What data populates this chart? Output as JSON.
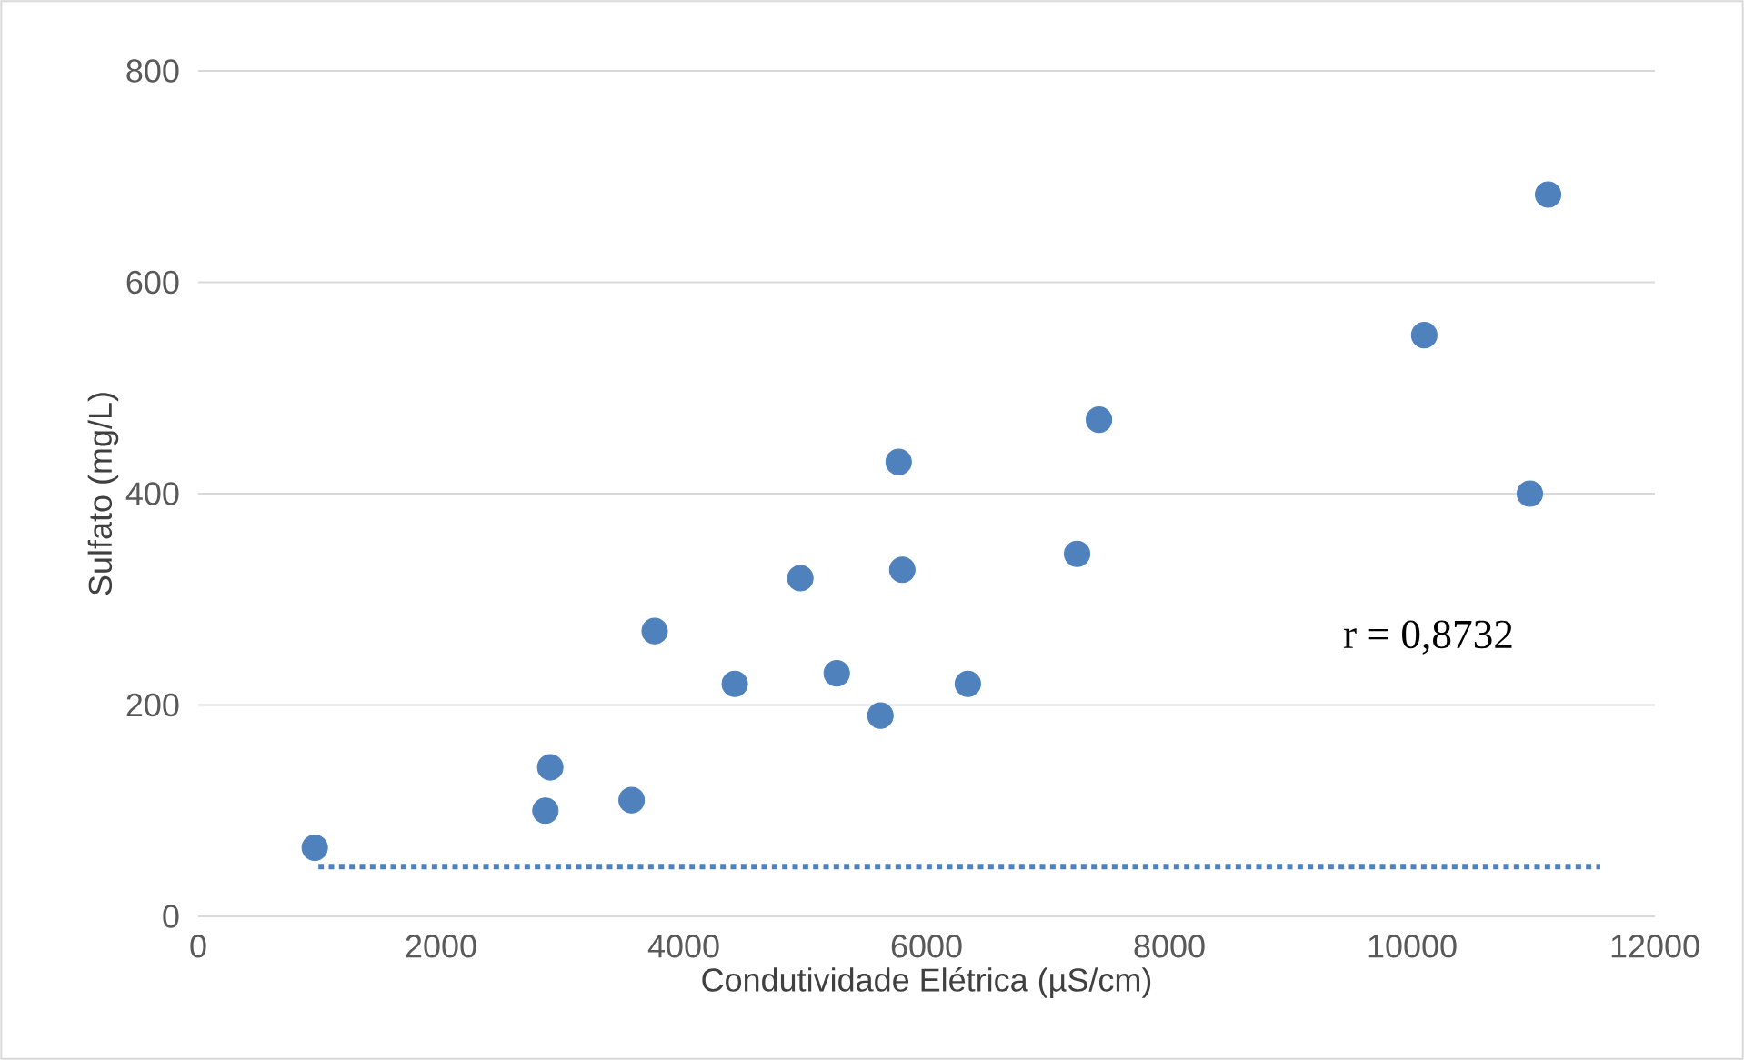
{
  "chart_data": {
    "type": "scatter",
    "xlabel": "Condutividade Elétrica (µS/cm)",
    "ylabel": "Sulfato (mg/L)",
    "xlim": [
      0,
      12000
    ],
    "ylim": [
      0,
      800
    ],
    "xticks": [
      0,
      2000,
      4000,
      6000,
      8000,
      10000,
      12000
    ],
    "yticks": [
      0,
      200,
      400,
      600,
      800
    ],
    "grid": "y",
    "annotations": [
      "r = 0,8732"
    ],
    "series": [
      {
        "color": "#4f81bd",
        "marker": "circle",
        "x": [
          960,
          2860,
          2900,
          3570,
          3760,
          4420,
          4960,
          5260,
          5620,
          5770,
          5800,
          6340,
          7240,
          7420,
          10100,
          10970,
          11120
        ],
        "values": [
          65,
          100,
          141,
          110,
          270,
          220,
          320,
          230,
          190,
          430,
          328,
          220,
          343,
          470,
          550,
          400,
          683
        ]
      },
      {
        "type": "line",
        "color": "#4f81bd",
        "line_style": "dotted",
        "marker": "none",
        "x": [
          990,
          11550
        ],
        "values": [
          47,
          47
        ]
      }
    ]
  }
}
